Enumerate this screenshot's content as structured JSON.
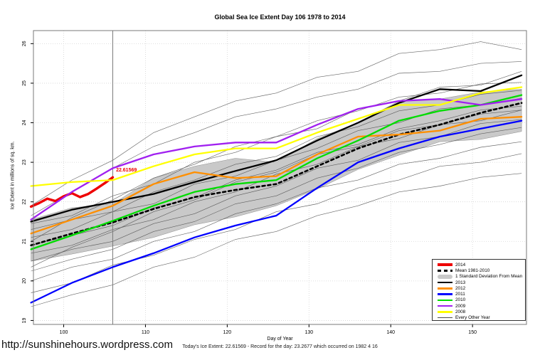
{
  "title": "Global Sea Ice Extent Day 106 1978 to 2014",
  "axes": {
    "x_label": "Day of Year",
    "y_label": "Ice Extent in millions of sq. km."
  },
  "footer": {
    "status_line": "Today's Ice Extent: 22.61569 - Record for the day: 23.2677 which occurred on 1982 4 16",
    "site_url": "http://sunshinehours.wordpress.com"
  },
  "annotation": {
    "text": "22.61569",
    "color": "#ee0000",
    "day": 106.4,
    "value": 22.78
  },
  "legend": {
    "position": "bottom-right",
    "items": [
      {
        "label": "2014",
        "color": "#ee0000",
        "style": "thick"
      },
      {
        "label": "Mean 1981-2010",
        "color": "#000000",
        "style": "dashed"
      },
      {
        "label": "1 Standard Deviation From Mean",
        "color": "#c9c9c9",
        "style": "band"
      },
      {
        "label": "2013",
        "color": "#000000",
        "style": "line"
      },
      {
        "label": "2012",
        "color": "#ff8f00",
        "style": "line"
      },
      {
        "label": "2011",
        "color": "#0000ff",
        "style": "line"
      },
      {
        "label": "2010",
        "color": "#00dd00",
        "style": "line"
      },
      {
        "label": "2009",
        "color": "#a020f0",
        "style": "line"
      },
      {
        "label": "2008",
        "color": "#ffff00",
        "style": "line"
      },
      {
        "label": "Every Other Year",
        "color": "#4d4d4d",
        "style": "thin"
      }
    ]
  },
  "chart_data": {
    "type": "line",
    "title": "Global Sea Ice Extent Day 106 1978 to 2014",
    "xlabel": "Day of Year",
    "ylabel": "Ice Extent in millions of sq. km.",
    "x_range": [
      96.3,
      156.6
    ],
    "y_range": [
      18.9,
      26.33
    ],
    "x_ticks": [
      100,
      110,
      120,
      130,
      140,
      150
    ],
    "y_ticks": [
      19,
      20,
      21,
      22,
      23,
      24,
      25,
      26
    ],
    "grid": "dotted",
    "legend_position": "bottom-right",
    "marker_day": 106,
    "sample_days": [
      96,
      101,
      106,
      111,
      116,
      121,
      126,
      131,
      136,
      141,
      146,
      151,
      156
    ],
    "band": {
      "name": "1 Standard Deviation From Mean",
      "color": "#c9c9c9",
      "edge_color": "#8f8f8f",
      "upper": [
        21.55,
        21.85,
        21.95,
        22.6,
        22.9,
        23.1,
        23.0,
        23.6,
        24.0,
        24.55,
        24.6,
        24.78,
        24.85
      ],
      "lower": [
        20.5,
        20.68,
        20.88,
        21.1,
        21.42,
        21.62,
        21.9,
        22.32,
        22.82,
        23.18,
        23.52,
        23.58,
        23.78
      ]
    },
    "series": [
      {
        "name": "2014",
        "color": "#ee0000",
        "width": 3.4,
        "days": [
          96,
          97,
          98,
          99,
          100,
          101,
          102,
          103,
          104,
          105,
          106
        ],
        "values": [
          21.88,
          21.97,
          22.08,
          22.02,
          22.14,
          22.22,
          22.12,
          22.2,
          22.33,
          22.47,
          22.62
        ]
      },
      {
        "name": "Mean 1981-2010",
        "color": "#000000",
        "width": 2.6,
        "dash": "4 4",
        "values": [
          20.9,
          21.2,
          21.48,
          21.82,
          22.12,
          22.3,
          22.45,
          22.9,
          23.35,
          23.7,
          23.95,
          24.25,
          24.5
        ]
      },
      {
        "name": "2013",
        "color": "#000000",
        "width": 2.3,
        "values": [
          21.5,
          21.8,
          22.0,
          22.2,
          22.5,
          22.78,
          23.05,
          23.55,
          24.0,
          24.5,
          24.85,
          24.8,
          25.2
        ]
      },
      {
        "name": "2012",
        "color": "#ff8f00",
        "width": 2.3,
        "values": [
          21.2,
          21.55,
          21.9,
          22.45,
          22.75,
          22.6,
          22.65,
          23.2,
          23.65,
          23.7,
          23.8,
          24.1,
          24.15
        ]
      },
      {
        "name": "2011",
        "color": "#0000ff",
        "width": 2.3,
        "values": [
          19.45,
          19.95,
          20.35,
          20.7,
          21.1,
          21.4,
          21.65,
          22.35,
          23.0,
          23.35,
          23.65,
          23.85,
          24.05
        ]
      },
      {
        "name": "2010",
        "color": "#00dd00",
        "width": 2.3,
        "values": [
          20.8,
          21.15,
          21.52,
          21.9,
          22.25,
          22.45,
          22.55,
          23.1,
          23.55,
          24.05,
          24.3,
          24.45,
          24.7
        ]
      },
      {
        "name": "2009",
        "color": "#a020f0",
        "width": 2.3,
        "values": [
          21.55,
          22.25,
          22.85,
          23.2,
          23.4,
          23.5,
          23.5,
          23.95,
          24.35,
          24.55,
          24.6,
          24.45,
          24.6
        ]
      },
      {
        "name": "2008",
        "color": "#ffff00",
        "width": 2.3,
        "values": [
          22.4,
          22.5,
          22.55,
          22.9,
          23.2,
          23.35,
          23.35,
          23.75,
          24.1,
          24.45,
          24.45,
          24.75,
          24.9
        ]
      }
    ],
    "every_other_year": {
      "name": "Every Other Year",
      "color": "#4d4d4d",
      "width": 0.65,
      "lines": [
        [
          21.9,
          22.55,
          23.05,
          23.75,
          24.15,
          24.55,
          24.75,
          25.15,
          25.3,
          25.75,
          25.85,
          26.05,
          25.85
        ],
        [
          21.65,
          22.25,
          22.85,
          23.4,
          23.75,
          24.15,
          24.35,
          24.65,
          24.85,
          25.25,
          25.3,
          25.5,
          25.55
        ],
        [
          21.45,
          21.65,
          22.15,
          22.45,
          23.0,
          23.25,
          23.65,
          23.85,
          24.35,
          24.55,
          24.9,
          24.95,
          25.3
        ],
        [
          21.3,
          21.55,
          21.75,
          22.25,
          22.55,
          22.95,
          23.15,
          23.65,
          23.9,
          24.3,
          24.45,
          24.72,
          24.82
        ],
        [
          21.1,
          21.3,
          21.75,
          21.95,
          22.45,
          22.65,
          23.05,
          23.35,
          23.8,
          24.0,
          24.35,
          24.45,
          24.62
        ],
        [
          20.9,
          21.15,
          21.4,
          21.85,
          22.1,
          22.55,
          22.8,
          23.25,
          23.45,
          23.85,
          24.05,
          24.32,
          24.42
        ],
        [
          20.7,
          20.9,
          21.3,
          21.55,
          22.0,
          22.25,
          22.7,
          22.95,
          23.4,
          23.6,
          23.95,
          24.05,
          24.32
        ],
        [
          20.5,
          20.8,
          21.0,
          21.45,
          21.7,
          22.15,
          22.4,
          22.85,
          23.05,
          23.5,
          23.65,
          23.98,
          24.08
        ],
        [
          20.25,
          20.55,
          20.8,
          21.25,
          21.5,
          21.95,
          22.15,
          22.6,
          22.85,
          23.25,
          23.45,
          23.72,
          23.88
        ],
        [
          20.0,
          20.35,
          20.55,
          21.0,
          21.25,
          21.7,
          21.95,
          22.35,
          22.55,
          22.95,
          23.1,
          23.38,
          23.52
        ],
        [
          19.7,
          19.95,
          20.4,
          20.65,
          21.05,
          21.3,
          21.75,
          21.95,
          22.35,
          22.55,
          22.9,
          23.0,
          23.22
        ],
        [
          19.35,
          19.65,
          19.9,
          20.35,
          20.6,
          21.05,
          21.25,
          21.65,
          21.9,
          22.25,
          22.4,
          22.62,
          22.72
        ],
        [
          21.0,
          21.6,
          22.05,
          22.6,
          22.95,
          23.4,
          23.65,
          24.05,
          24.3,
          24.65,
          24.75,
          24.98,
          25.02
        ],
        [
          20.35,
          20.85,
          21.25,
          21.75,
          22.05,
          22.5,
          22.75,
          23.2,
          23.4,
          23.8,
          23.95,
          24.22,
          24.32
        ]
      ]
    }
  }
}
